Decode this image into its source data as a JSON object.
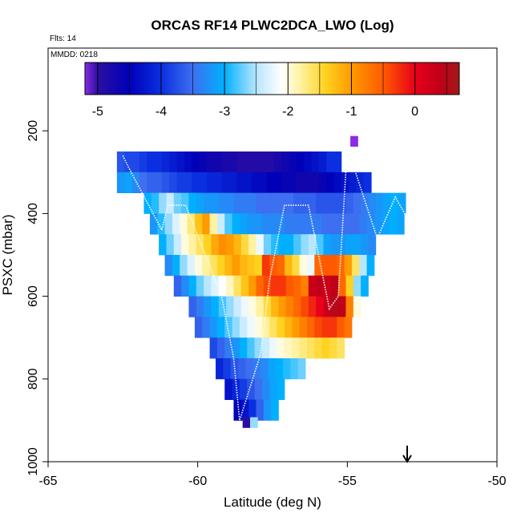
{
  "chart_data": {
    "type": "heatmap",
    "title": "ORCAS RF14 PLWC2DCA_LWO (Log)",
    "flights_label": "Flts: 14",
    "date_label": "MMDD: 0218",
    "xlabel": "Latitude (deg N)",
    "ylabel": "PSXC (mbar)",
    "xlim": [
      -65,
      -50
    ],
    "ylim": [
      1000,
      0
    ],
    "x_ticks": [
      -65,
      -60,
      -55,
      -50
    ],
    "x_tick_labels": [
      "-65",
      "-60",
      "-55",
      "-50"
    ],
    "y_ticks": [
      200,
      400,
      600,
      800,
      1000
    ],
    "y_tick_labels": [
      "200",
      "400",
      "600",
      "800",
      "1000"
    ],
    "colorbar": {
      "range": [
        -5.2,
        0.7
      ],
      "ticks": [
        -5,
        -4,
        -3,
        -2,
        -1,
        0
      ],
      "tick_labels": [
        "-5",
        "-4",
        "-3",
        "-2",
        "-1",
        "0"
      ],
      "stops": [
        {
          "v": -5.2,
          "c": "#8a2be2"
        },
        {
          "v": -5.0,
          "c": "#2a0fa0"
        },
        {
          "v": -4.5,
          "c": "#0000b8"
        },
        {
          "v": -4.0,
          "c": "#0a2fe0"
        },
        {
          "v": -3.5,
          "c": "#3d6ff0"
        },
        {
          "v": -3.0,
          "c": "#00b0ff"
        },
        {
          "v": -2.5,
          "c": "#b8e6ff"
        },
        {
          "v": -2.1,
          "c": "#ffffff"
        },
        {
          "v": -1.8,
          "c": "#fff2a0"
        },
        {
          "v": -1.4,
          "c": "#ffd21f"
        },
        {
          "v": -1.0,
          "c": "#ff9a00"
        },
        {
          "v": -0.5,
          "c": "#ff5a00"
        },
        {
          "v": 0.0,
          "c": "#e8001a"
        },
        {
          "v": 0.4,
          "c": "#c00018"
        },
        {
          "v": 0.7,
          "c": "#a01a1a"
        }
      ]
    },
    "pressure_levels": [
      225,
      275,
      325,
      375,
      425,
      475,
      525,
      575,
      625,
      675,
      725,
      775,
      825,
      875
    ],
    "rows": [
      {
        "p": 225,
        "x0": -54.9,
        "vals": [
          -5.2
        ]
      },
      {
        "p": 275,
        "x0": -62.7,
        "vals": [
          -3.7,
          -3.8,
          -3.8,
          -3.9,
          -4.0,
          -4.0,
          -4.1,
          -4.2,
          -4.3,
          -4.4,
          -4.5,
          -4.6,
          -4.7,
          -4.7,
          -4.8,
          -4.8,
          -4.9,
          -4.9,
          -4.9,
          -4.9,
          -4.9,
          -4.8,
          -4.7,
          -4.6,
          -4.5,
          -4.4,
          -4.3,
          -4.2,
          -4.0,
          -4.0
        ]
      },
      {
        "p": 325,
        "x0": -62.7,
        "vals": [
          -3.2,
          -3.1,
          -3.3,
          -3.5,
          -3.6,
          -3.6,
          -3.7,
          -3.8,
          -3.9,
          -3.9,
          -4.0,
          -4.0,
          -4.1,
          -4.1,
          -4.2,
          -4.2,
          -4.3,
          -4.3,
          -4.4,
          -4.4,
          -4.5,
          -4.5,
          -4.6,
          -4.6,
          -4.7,
          -4.7,
          -4.7,
          -4.6,
          -4.5,
          -4.4,
          -4.3,
          -4.2,
          -4.1,
          -4.0
        ]
      },
      {
        "p": 375,
        "x0": -61.8,
        "vals": [
          -3.0,
          -2.9,
          -2.6,
          -2.4,
          -2.7,
          -2.8,
          -3.0,
          -3.1,
          -3.2,
          -3.2,
          -3.3,
          -3.3,
          -3.4,
          -3.4,
          -3.4,
          -3.5,
          -3.5,
          -3.5,
          -3.5,
          -3.5,
          -3.6,
          -3.6,
          -3.6,
          -3.7,
          -3.7,
          -3.7,
          -3.7,
          -3.6,
          -3.5,
          -3.4,
          -3.3,
          -3.2,
          -3.1,
          -3.0,
          -3.1
        ]
      },
      {
        "p": 425,
        "x0": -61.6,
        "vals": [
          -3.2,
          -2.9,
          -2.6,
          -2.3,
          -2.0,
          -1.7,
          -1.3,
          -1.0,
          -1.8,
          -2.4,
          -2.8,
          -3.0,
          -3.1,
          -3.2,
          -3.2,
          -3.3,
          -3.3,
          -3.3,
          -3.4,
          -3.4,
          -3.4,
          -3.4,
          -3.4,
          -3.5,
          -3.5,
          -3.5,
          -3.5,
          -3.5,
          -3.4,
          -3.3,
          -3.2,
          -3.1,
          -3.0,
          -3.1
        ]
      },
      {
        "p": 475,
        "x0": -61.3,
        "vals": [
          -3.0,
          -2.7,
          -2.4,
          -2.0,
          -1.8,
          -1.6,
          -1.4,
          -1.1,
          -0.9,
          -1.0,
          -1.2,
          -1.5,
          -1.8,
          -2.2,
          -2.7,
          -2.9,
          -3.0,
          -3.0,
          -2.8,
          -2.6,
          -2.5,
          -2.8,
          -3.1,
          -3.2,
          -3.2,
          -3.1,
          -3.1,
          -3.2,
          -3.3
        ]
      },
      {
        "p": 525,
        "x0": -61.1,
        "vals": [
          -3.3,
          -3.0,
          -2.6,
          -2.3,
          -2.0,
          -1.8,
          -1.6,
          -1.4,
          -1.2,
          -1.0,
          -1.2,
          -1.3,
          -1.4,
          -0.3,
          -0.5,
          -0.6,
          -1.2,
          -1.5,
          -2.0,
          -2.2,
          -0.6,
          -0.5,
          -0.5,
          -0.6,
          -1.0,
          -1.6,
          -2.5,
          -3.0
        ]
      },
      {
        "p": 575,
        "x0": -60.8,
        "vals": [
          -3.6,
          -3.3,
          -3.0,
          -2.7,
          -2.5,
          -2.3,
          -2.1,
          -1.9,
          -1.6,
          -1.3,
          -1.0,
          -0.6,
          -0.4,
          -0.3,
          -0.3,
          -0.5,
          -0.6,
          -0.8,
          0.3,
          0.4,
          0.3,
          0.4,
          -0.6,
          -1.4,
          -2.6,
          -3.0
        ]
      },
      {
        "p": 625,
        "x0": -60.3,
        "vals": [
          -3.6,
          -3.4,
          -3.2,
          -3.0,
          -2.8,
          -2.6,
          -2.4,
          -2.2,
          -2.0,
          -1.8,
          -1.5,
          -1.2,
          -1.0,
          -0.8,
          -0.6,
          -0.4,
          -0.2,
          0.0,
          0.3,
          0.5,
          0.4,
          -0.8,
          -2.0
        ]
      },
      {
        "p": 675,
        "x0": -60.1,
        "vals": [
          -3.6,
          -3.4,
          -3.2,
          -3.0,
          -2.8,
          -2.6,
          -2.4,
          -2.2,
          -2.0,
          -1.8,
          -1.6,
          -1.4,
          -1.2,
          -1.0,
          -0.8,
          -0.6,
          -0.4,
          -0.3,
          -0.3,
          -0.5,
          -0.7
        ]
      },
      {
        "p": 725,
        "x0": -59.6,
        "vals": [
          -3.8,
          -3.6,
          -3.4,
          -3.2,
          -3.0,
          -2.8,
          -2.6,
          -2.4,
          -2.2,
          -2.0,
          -1.9,
          -1.8,
          -1.7,
          -1.6,
          -1.5,
          -1.4,
          -1.5,
          -1.6
        ]
      },
      {
        "p": 775,
        "x0": -59.4,
        "vals": [
          -4.1,
          -3.9,
          -3.7,
          -3.6,
          -3.5,
          -3.4,
          -3.3,
          -3.1,
          -3.0,
          -2.9,
          -2.8,
          -2.7
        ]
      },
      {
        "p": 825,
        "x0": -59.1,
        "vals": [
          -4.3,
          -4.1,
          -3.9,
          -3.7,
          -3.5,
          -3.3,
          -3.1,
          -3.0
        ]
      },
      {
        "p": 875,
        "x0": -58.8,
        "vals": [
          -4.5,
          -4.3,
          -4.0,
          -3.6,
          -3.2,
          -3.0
        ]
      },
      {
        "p": 905,
        "x0": -58.5,
        "vals": [
          -5.0,
          -2.6
        ]
      }
    ],
    "flight_track": [
      {
        "lat": -62.5,
        "p": 260
      },
      {
        "lat": -62.3,
        "p": 290
      },
      {
        "lat": -61.2,
        "p": 440
      },
      {
        "lat": -61.0,
        "p": 380
      },
      {
        "lat": -60.4,
        "p": 380
      },
      {
        "lat": -59.2,
        "p": 600
      },
      {
        "lat": -58.8,
        "p": 750
      },
      {
        "lat": -58.6,
        "p": 900
      },
      {
        "lat": -57.9,
        "p": 740
      },
      {
        "lat": -57.6,
        "p": 560
      },
      {
        "lat": -57.1,
        "p": 380
      },
      {
        "lat": -56.3,
        "p": 380
      },
      {
        "lat": -55.6,
        "p": 630
      },
      {
        "lat": -55.3,
        "p": 600
      },
      {
        "lat": -55.0,
        "p": 240
      },
      {
        "lat": -54.0,
        "p": 460
      },
      {
        "lat": -53.4,
        "p": 360
      },
      {
        "lat": -52.6,
        "p": 460
      },
      {
        "lat": -52.0,
        "p": 380
      },
      {
        "lat": -51.4,
        "p": 380
      }
    ],
    "marker_arrow_lat": -53.0
  }
}
